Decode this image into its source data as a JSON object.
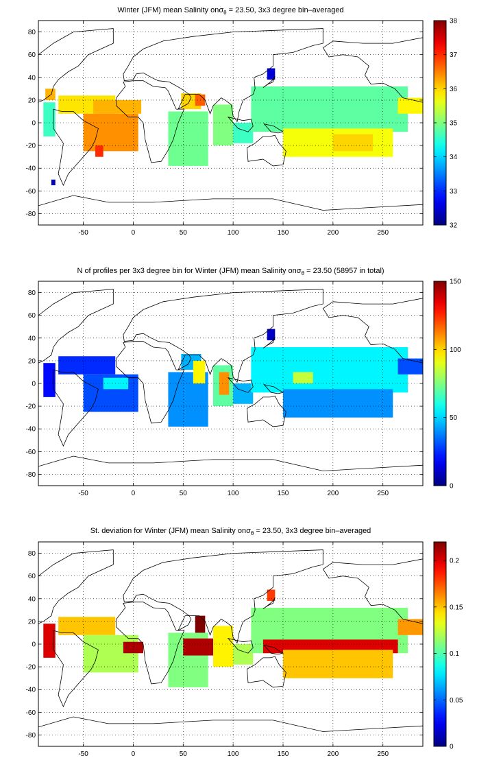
{
  "chart_data": [
    {
      "type": "heatmap",
      "title_parts": [
        "Winter (JFM) mean Salinity on",
        "σ",
        "θ",
        " = 23.50, 3x3 degree bin–averaged"
      ],
      "x_ticks": [
        "-50",
        "0",
        "50",
        "100",
        "150",
        "200",
        "250"
      ],
      "y_ticks": [
        "80",
        "60",
        "40",
        "20",
        "0",
        "-20",
        "-40",
        "-60",
        "-80"
      ],
      "xlim": [
        -95,
        290
      ],
      "ylim": [
        -90,
        90
      ],
      "grid": "dotted",
      "colormap": "jet",
      "clim": [
        32,
        38
      ],
      "colorbar_ticks": [
        "38",
        "37",
        "36",
        "35",
        "34",
        "33",
        "32"
      ],
      "cells": [
        {
          "x": [
            -90,
            -78
          ],
          "y": [
            -12,
            18
          ],
          "value": 34.6
        },
        {
          "x": [
            -75,
            -18
          ],
          "y": [
            8,
            24
          ],
          "value": 35.9
        },
        {
          "x": [
            -50,
            5
          ],
          "y": [
            -25,
            8
          ],
          "value": 36.4
        },
        {
          "x": [
            -40,
            8
          ],
          "y": [
            8,
            20
          ],
          "value": 36.2
        },
        {
          "x": [
            35,
            75
          ],
          "y": [
            -38,
            10
          ],
          "value": 34.9
        },
        {
          "x": [
            48,
            68
          ],
          "y": [
            12,
            26
          ],
          "value": 36.0
        },
        {
          "x": [
            62,
            72
          ],
          "y": [
            15,
            25
          ],
          "value": 36.7
        },
        {
          "x": [
            80,
            100
          ],
          "y": [
            -20,
            16
          ],
          "value": 35.0
        },
        {
          "x": [
            100,
            120
          ],
          "y": [
            -18,
            0
          ],
          "value": 34.6
        },
        {
          "x": [
            118,
            275
          ],
          "y": [
            -8,
            32
          ],
          "value": 34.8
        },
        {
          "x": [
            150,
            260
          ],
          "y": [
            -30,
            -5
          ],
          "value": 35.7
        },
        {
          "x": [
            200,
            240
          ],
          "y": [
            -25,
            -10
          ],
          "value": 36.0
        },
        {
          "x": [
            265,
            290
          ],
          "y": [
            8,
            22
          ],
          "value": 35.8
        },
        {
          "x": [
            -38,
            -30
          ],
          "y": [
            -30,
            -20
          ],
          "value": 37.0
        },
        {
          "x": [
            -88,
            -78
          ],
          "y": [
            20,
            30
          ],
          "value": 36.2
        },
        {
          "x": [
            134,
            142
          ],
          "y": [
            38,
            48
          ],
          "value": 32.5
        },
        {
          "x": [
            -82,
            -78
          ],
          "y": [
            -55,
            -50
          ],
          "value": 32.3
        }
      ]
    },
    {
      "type": "heatmap",
      "title_parts": [
        "N of profiles per 3x3 degree bin for Winter (JFM) mean Salinity on",
        "σ",
        "θ",
        " = 23.50 (58957 in total)"
      ],
      "x_ticks": [
        "-50",
        "0",
        "50",
        "100",
        "150",
        "200",
        "250"
      ],
      "y_ticks": [
        "80",
        "60",
        "40",
        "20",
        "0",
        "-20",
        "-40",
        "-60",
        "-80"
      ],
      "xlim": [
        -95,
        290
      ],
      "ylim": [
        -90,
        90
      ],
      "grid": "dotted",
      "colormap": "jet",
      "clim": [
        0,
        150
      ],
      "colorbar_ticks": [
        "150",
        "100",
        "50",
        "0"
      ],
      "cells": [
        {
          "x": [
            -90,
            -78
          ],
          "y": [
            -12,
            18
          ],
          "value": 20
        },
        {
          "x": [
            -75,
            -18
          ],
          "y": [
            8,
            24
          ],
          "value": 25
        },
        {
          "x": [
            -50,
            5
          ],
          "y": [
            -25,
            8
          ],
          "value": 30
        },
        {
          "x": [
            -30,
            -5
          ],
          "y": [
            -5,
            5
          ],
          "value": 55
        },
        {
          "x": [
            35,
            75
          ],
          "y": [
            -38,
            10
          ],
          "value": 40
        },
        {
          "x": [
            48,
            68
          ],
          "y": [
            12,
            26
          ],
          "value": 45
        },
        {
          "x": [
            60,
            72
          ],
          "y": [
            0,
            20
          ],
          "value": 95
        },
        {
          "x": [
            80,
            100
          ],
          "y": [
            -20,
            16
          ],
          "value": 70
        },
        {
          "x": [
            86,
            96
          ],
          "y": [
            -10,
            10
          ],
          "value": 110
        },
        {
          "x": [
            100,
            120
          ],
          "y": [
            -18,
            0
          ],
          "value": 45
        },
        {
          "x": [
            118,
            275
          ],
          "y": [
            -8,
            32
          ],
          "value": 55
        },
        {
          "x": [
            150,
            260
          ],
          "y": [
            -30,
            -5
          ],
          "value": 40
        },
        {
          "x": [
            160,
            180
          ],
          "y": [
            0,
            10
          ],
          "value": 85
        },
        {
          "x": [
            265,
            290
          ],
          "y": [
            8,
            22
          ],
          "value": 30
        },
        {
          "x": [
            134,
            142
          ],
          "y": [
            38,
            48
          ],
          "value": 10
        }
      ]
    },
    {
      "type": "heatmap",
      "title_parts": [
        "St. deviation for Winter (JFM) mean Salinity on",
        "σ",
        "θ",
        " = 23.50, 3x3 degree bin–averaged"
      ],
      "x_ticks": [
        "-50",
        "0",
        "50",
        "100",
        "150",
        "200",
        "250"
      ],
      "y_ticks": [
        "80",
        "60",
        "40",
        "20",
        "0",
        "-20",
        "-40",
        "-60",
        "-80"
      ],
      "xlim": [
        -95,
        290
      ],
      "ylim": [
        -90,
        90
      ],
      "grid": "dotted",
      "colormap": "jet",
      "clim": [
        0,
        0.22
      ],
      "colorbar_ticks": [
        "0.2",
        "0.15",
        "0.1",
        "0.05",
        "0"
      ],
      "cells": [
        {
          "x": [
            -90,
            -78
          ],
          "y": [
            -12,
            18
          ],
          "value": 0.2
        },
        {
          "x": [
            -75,
            -18
          ],
          "y": [
            8,
            24
          ],
          "value": 0.15
        },
        {
          "x": [
            -50,
            5
          ],
          "y": [
            -25,
            8
          ],
          "value": 0.12
        },
        {
          "x": [
            -10,
            10
          ],
          "y": [
            -8,
            2
          ],
          "value": 0.21
        },
        {
          "x": [
            35,
            75
          ],
          "y": [
            -38,
            10
          ],
          "value": 0.11
        },
        {
          "x": [
            50,
            95
          ],
          "y": [
            -10,
            5
          ],
          "value": 0.21
        },
        {
          "x": [
            62,
            72
          ],
          "y": [
            10,
            25
          ],
          "value": 0.22
        },
        {
          "x": [
            80,
            100
          ],
          "y": [
            -20,
            16
          ],
          "value": 0.14
        },
        {
          "x": [
            100,
            120
          ],
          "y": [
            -18,
            0
          ],
          "value": 0.12
        },
        {
          "x": [
            118,
            275
          ],
          "y": [
            -8,
            32
          ],
          "value": 0.11
        },
        {
          "x": [
            130,
            265
          ],
          "y": [
            -8,
            4
          ],
          "value": 0.2
        },
        {
          "x": [
            150,
            260
          ],
          "y": [
            -30,
            -5
          ],
          "value": 0.15
        },
        {
          "x": [
            265,
            290
          ],
          "y": [
            8,
            22
          ],
          "value": 0.16
        },
        {
          "x": [
            134,
            142
          ],
          "y": [
            38,
            48
          ],
          "value": 0.18
        }
      ]
    }
  ]
}
